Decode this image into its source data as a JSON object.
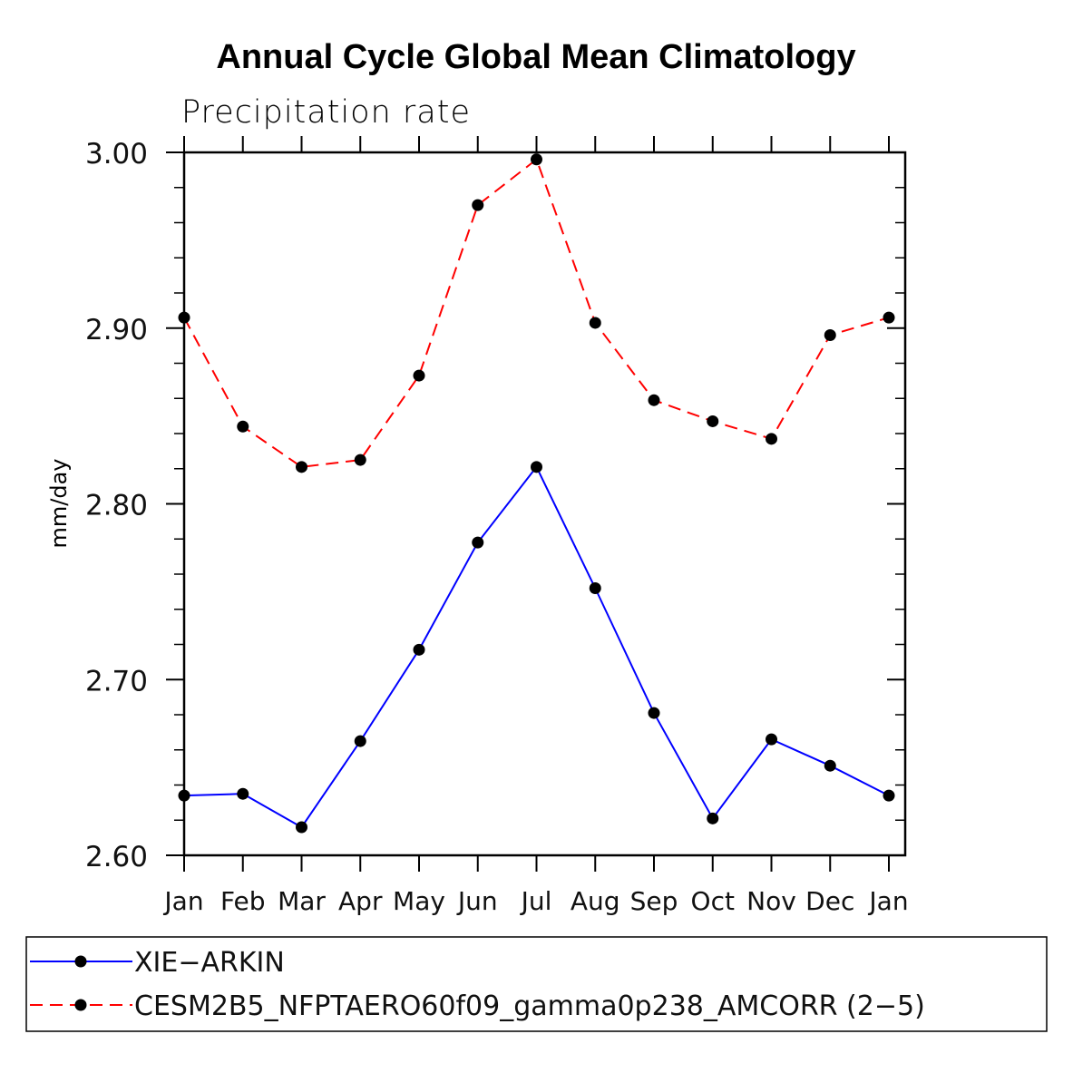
{
  "chart_data": {
    "type": "line",
    "title": "Annual Cycle Global Mean Climatology",
    "subtitle": "Precipitation rate",
    "xlabel": "",
    "ylabel": "mm/day",
    "categories": [
      "Jan",
      "Feb",
      "Mar",
      "Apr",
      "May",
      "Jun",
      "Jul",
      "Aug",
      "Sep",
      "Oct",
      "Nov",
      "Dec",
      "Jan"
    ],
    "ylim": [
      2.6,
      3.0
    ],
    "yticks": [
      "2.60",
      "2.70",
      "2.80",
      "2.90",
      "3.00"
    ],
    "series": [
      {
        "name": "XIE−ARKIN",
        "color": "#0000ff",
        "dashed": false,
        "values": [
          2.634,
          2.635,
          2.616,
          2.665,
          2.717,
          2.778,
          2.821,
          2.752,
          2.681,
          2.621,
          2.666,
          2.651,
          2.634
        ]
      },
      {
        "name": "CESM2B5_NFPTAERO60f09_gamma0p238_AMCORR (2−5)",
        "color": "#ff0000",
        "dashed": true,
        "values": [
          2.906,
          2.844,
          2.821,
          2.825,
          2.873,
          2.97,
          2.996,
          2.903,
          2.859,
          2.847,
          2.837,
          2.896,
          2.906
        ]
      }
    ],
    "legend_position": "bottom"
  }
}
